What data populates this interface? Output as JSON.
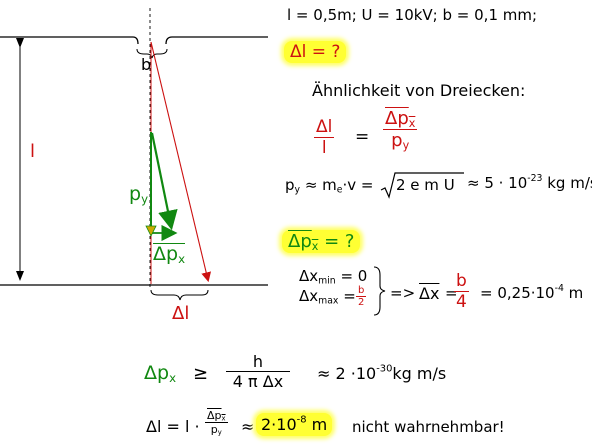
{
  "givens": "l = 0,5m; U = 10kV; b = 0,1 mm;",
  "question_dl": "Δl = ?",
  "similarity_heading": "Ähnlichkeit von Dreiecken:",
  "ratio": {
    "lhs_num": "Δl",
    "lhs_den": "l",
    "eq": "=",
    "rhs_num": "Δp",
    "rhs_num_sub": "x",
    "rhs_den": "p",
    "rhs_den_sub": "y"
  },
  "py_line": {
    "lhs": "p",
    "lhs_sub": "y",
    "approx1": "≈ m",
    "me_sub": "e",
    "v": "·v =",
    "radicand": "2 e m U",
    "approx2": "≈ 5 · 10",
    "exp": "-23",
    "unit": "kg m/s"
  },
  "question_dpx": {
    "text": "Δp",
    "sub": "x",
    "tail": " = ?"
  },
  "dx": {
    "min_label": "Δx",
    "min_sub": "min",
    "min_val": "= 0",
    "max_label": "Δx",
    "max_sub": "max",
    "max_eq": "=",
    "max_num": "b",
    "max_den": "2",
    "arrow": "=>",
    "bar": "Δx",
    "eq": "=",
    "frac_num": "b",
    "frac_den": "4",
    "result": "= 0,25·10",
    "result_exp": "-4",
    "result_unit": "m"
  },
  "uncertainty": {
    "lhs": "Δp",
    "lhs_sub": "x",
    "geq": "≥",
    "num": "h",
    "den_a": "4 π",
    "den_b": "Δx",
    "approx": "≈ 2 ·10",
    "exp": "-30",
    "unit": "kg m/s"
  },
  "final": {
    "lhs": "Δl = l ·",
    "frac_num": "Δp",
    "frac_num_sub": "x",
    "frac_den": "p",
    "frac_den_sub": "y",
    "approx": "≈",
    "val": "2·10",
    "exp": "-8",
    "unit": "m",
    "comment": "nicht wahrnehmbar!"
  },
  "diagram": {
    "label_b": "b",
    "label_l": "l",
    "label_py": "p",
    "label_py_sub": "y",
    "label_dpx": "Δp",
    "label_dpx_sub": "x",
    "label_dl": "Δl"
  },
  "colors": {
    "red": "#cc1111",
    "green": "#118811",
    "highlight": "#ffff33"
  }
}
